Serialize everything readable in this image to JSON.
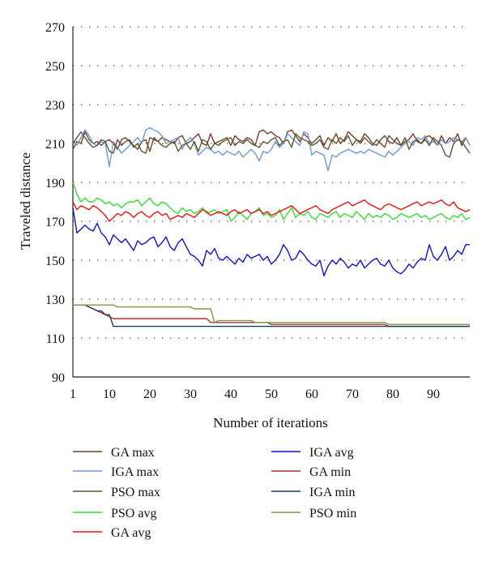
{
  "chart_data": {
    "type": "line",
    "xlabel": "Number of iterations",
    "ylabel": "Traveled distance",
    "xlim": [
      1,
      99
    ],
    "ylim": [
      90,
      270
    ],
    "xticks": [
      1,
      10,
      20,
      30,
      40,
      50,
      60,
      70,
      80,
      90
    ],
    "yticks": [
      90,
      110,
      130,
      150,
      170,
      190,
      210,
      230,
      250,
      270
    ],
    "grid": "dotted horizontal",
    "legend_position": "bottom",
    "series": [
      {
        "name": "GA max",
        "color": "#7a3b2e",
        "values": [
          207,
          211,
          210,
          216,
          212,
          210,
          211,
          209,
          211,
          212,
          210,
          207,
          212,
          213,
          211,
          209,
          207,
          211,
          212,
          206,
          213,
          211,
          213,
          212,
          211,
          210,
          213,
          214,
          210,
          211,
          213,
          215,
          210,
          209,
          215,
          210,
          211,
          212,
          213,
          209,
          214,
          212,
          211,
          213,
          212,
          209,
          216,
          217,
          215,
          216,
          214,
          213,
          210,
          216,
          217,
          214,
          211,
          215,
          213,
          210,
          212,
          214,
          209,
          213,
          211,
          215,
          210,
          212,
          216,
          214,
          212,
          211,
          215,
          213,
          210,
          209,
          212,
          214,
          211,
          210,
          213,
          209,
          211,
          212,
          215,
          211,
          210,
          213,
          214,
          212,
          209,
          214,
          210,
          213,
          211,
          215,
          209,
          213,
          209
        ]
      },
      {
        "name": "IGA max",
        "color": "#6b9bd2",
        "values": [
          212,
          209,
          213,
          217,
          214,
          210,
          209,
          211,
          210,
          198,
          211,
          208,
          205,
          207,
          209,
          211,
          213,
          210,
          217,
          218,
          217,
          216,
          214,
          210,
          211,
          212,
          213,
          207,
          211,
          213,
          210,
          204,
          206,
          208,
          207,
          205,
          206,
          204,
          206,
          205,
          204,
          206,
          203,
          205,
          207,
          205,
          201,
          206,
          205,
          207,
          211,
          208,
          210,
          215,
          213,
          211,
          209,
          216,
          215,
          204,
          206,
          205,
          204,
          196,
          204,
          203,
          205,
          206,
          207,
          206,
          205,
          206,
          205,
          207,
          206,
          205,
          204,
          203,
          206,
          204,
          206,
          208,
          210,
          211,
          209,
          213,
          212,
          214,
          210,
          211,
          209,
          212,
          210,
          211,
          213,
          212,
          211,
          213,
          209
        ]
      },
      {
        "name": "PSO max",
        "color": "#5a5a2e",
        "values": [
          210,
          213,
          216,
          213,
          210,
          208,
          209,
          212,
          211,
          206,
          205,
          212,
          209,
          211,
          212,
          208,
          210,
          206,
          205,
          213,
          212,
          211,
          209,
          208,
          210,
          211,
          206,
          209,
          210,
          207,
          211,
          206,
          212,
          211,
          207,
          210,
          209,
          211,
          212,
          213,
          209,
          211,
          210,
          212,
          210,
          209,
          208,
          211,
          210,
          212,
          213,
          209,
          211,
          212,
          208,
          215,
          213,
          212,
          211,
          209,
          210,
          212,
          208,
          207,
          212,
          210,
          213,
          211,
          214,
          209,
          212,
          210,
          213,
          211,
          209,
          212,
          210,
          208,
          214,
          212,
          210,
          209,
          213,
          207,
          211,
          212,
          210,
          212,
          209,
          213,
          211,
          209,
          204,
          203,
          210,
          212,
          211,
          208,
          205
        ]
      },
      {
        "name": "PSO avg",
        "color": "#33dd33",
        "values": [
          190,
          184,
          180,
          182,
          180,
          180,
          182,
          181,
          179,
          180,
          178,
          179,
          177,
          179,
          180,
          180,
          181,
          178,
          180,
          182,
          179,
          178,
          180,
          179,
          177,
          175,
          174,
          177,
          175,
          176,
          174,
          175,
          177,
          174,
          175,
          176,
          174,
          175,
          176,
          170,
          172,
          175,
          173,
          171,
          174,
          175,
          177,
          173,
          174,
          172,
          173,
          176,
          171,
          174,
          177,
          172,
          174,
          173,
          175,
          172,
          171,
          174,
          173,
          172,
          174,
          175,
          172,
          174,
          173,
          172,
          175,
          173,
          171,
          174,
          172,
          173,
          172,
          174,
          173,
          171,
          172,
          174,
          173,
          172,
          173,
          174,
          172,
          173,
          171,
          172,
          173,
          174,
          172,
          171,
          173,
          172,
          174,
          171,
          172
        ]
      },
      {
        "name": "GA avg",
        "color": "#ee1111",
        "values": [
          180,
          176,
          178,
          177,
          176,
          178,
          177,
          175,
          173,
          170,
          172,
          174,
          173,
          175,
          174,
          172,
          174,
          175,
          173,
          172,
          174,
          175,
          173,
          174,
          171,
          172,
          173,
          172,
          174,
          173,
          172,
          174,
          176,
          175,
          173,
          174,
          175,
          174,
          173,
          175,
          176,
          174,
          175,
          176,
          174,
          175,
          176,
          174,
          175,
          173,
          174,
          175,
          176,
          177,
          178,
          176,
          174,
          175,
          176,
          177,
          178,
          176,
          175,
          174,
          176,
          177,
          178,
          179,
          180,
          178,
          179,
          180,
          181,
          179,
          178,
          177,
          176,
          178,
          179,
          178,
          177,
          176,
          177,
          178,
          179,
          180,
          178,
          179,
          180,
          179,
          180,
          181,
          179,
          178,
          180,
          177,
          176,
          175,
          176
        ]
      },
      {
        "name": "IGA avg",
        "color": "#1111cc",
        "values": [
          177,
          164,
          166,
          168,
          166,
          165,
          169,
          164,
          162,
          158,
          163,
          161,
          159,
          161,
          158,
          155,
          160,
          158,
          159,
          161,
          162,
          157,
          159,
          162,
          157,
          155,
          159,
          161,
          157,
          153,
          152,
          150,
          147,
          155,
          153,
          156,
          151,
          150,
          152,
          150,
          148,
          151,
          149,
          153,
          151,
          152,
          153,
          150,
          152,
          148,
          150,
          153,
          158,
          155,
          150,
          151,
          155,
          153,
          150,
          148,
          147,
          150,
          142,
          147,
          150,
          148,
          151,
          149,
          146,
          148,
          147,
          150,
          146,
          148,
          150,
          151,
          148,
          147,
          150,
          146,
          144,
          143,
          145,
          148,
          146,
          149,
          151,
          150,
          158,
          152,
          150,
          153,
          157,
          150,
          152,
          155,
          153,
          158,
          158
        ]
      },
      {
        "name": "GA min",
        "color": "#b03030",
        "values": [
          127,
          127,
          127,
          127,
          126,
          125,
          124,
          123,
          122,
          121,
          120,
          120,
          120,
          120,
          120,
          120,
          120,
          120,
          120,
          120,
          120,
          120,
          120,
          120,
          120,
          120,
          120,
          120,
          120,
          120,
          120,
          120,
          120,
          120,
          118,
          118,
          118,
          118,
          118,
          118,
          118,
          118,
          118,
          118,
          118,
          118,
          118,
          118,
          118,
          117,
          117,
          117,
          117,
          117,
          117,
          117,
          117,
          117,
          117,
          117,
          117,
          117,
          117,
          117,
          117,
          117,
          117,
          117,
          117,
          117,
          117,
          117,
          117,
          117,
          117,
          117,
          117,
          117,
          116,
          116,
          116,
          116,
          116,
          116,
          116,
          116,
          116,
          116,
          116,
          116,
          116,
          116,
          116,
          116,
          116,
          116,
          116,
          116,
          116
        ]
      },
      {
        "name": "IGA min",
        "color": "#1b3a5e",
        "values": [
          127,
          127,
          127,
          127,
          126,
          125,
          124,
          124,
          122,
          122,
          116,
          116,
          116,
          116,
          116,
          116,
          116,
          116,
          116,
          116,
          116,
          116,
          116,
          116,
          116,
          116,
          116,
          116,
          116,
          116,
          116,
          116,
          116,
          116,
          116,
          116,
          116,
          116,
          116,
          116,
          116,
          116,
          116,
          116,
          116,
          116,
          116,
          116,
          116,
          116,
          116,
          116,
          116,
          116,
          116,
          116,
          116,
          116,
          116,
          116,
          116,
          116,
          116,
          116,
          116,
          116,
          116,
          116,
          116,
          116,
          116,
          116,
          116,
          116,
          116,
          116,
          116,
          116,
          116,
          116,
          116,
          116,
          116,
          116,
          116,
          116,
          116,
          116,
          116,
          116,
          116,
          116,
          116,
          116,
          116,
          116,
          116,
          116,
          116
        ]
      },
      {
        "name": "PSO min",
        "color": "#7a9a40",
        "values": [
          127,
          127,
          127,
          127,
          127,
          127,
          127,
          127,
          127,
          127,
          127,
          126,
          126,
          126,
          126,
          126,
          126,
          126,
          126,
          126,
          126,
          126,
          126,
          126,
          126,
          126,
          126,
          126,
          126,
          126,
          125,
          125,
          125,
          125,
          125,
          118,
          119,
          119,
          119,
          119,
          119,
          119,
          119,
          119,
          119,
          118,
          118,
          118,
          118,
          118,
          118,
          118,
          118,
          118,
          118,
          118,
          118,
          118,
          118,
          118,
          118,
          118,
          118,
          118,
          118,
          118,
          118,
          118,
          118,
          118,
          118,
          118,
          118,
          118,
          118,
          118,
          118,
          118,
          117,
          117,
          117,
          117,
          117,
          117,
          117,
          117,
          117,
          117,
          117,
          117,
          117,
          117,
          117,
          117,
          117,
          117,
          117,
          117,
          117
        ]
      }
    ]
  }
}
